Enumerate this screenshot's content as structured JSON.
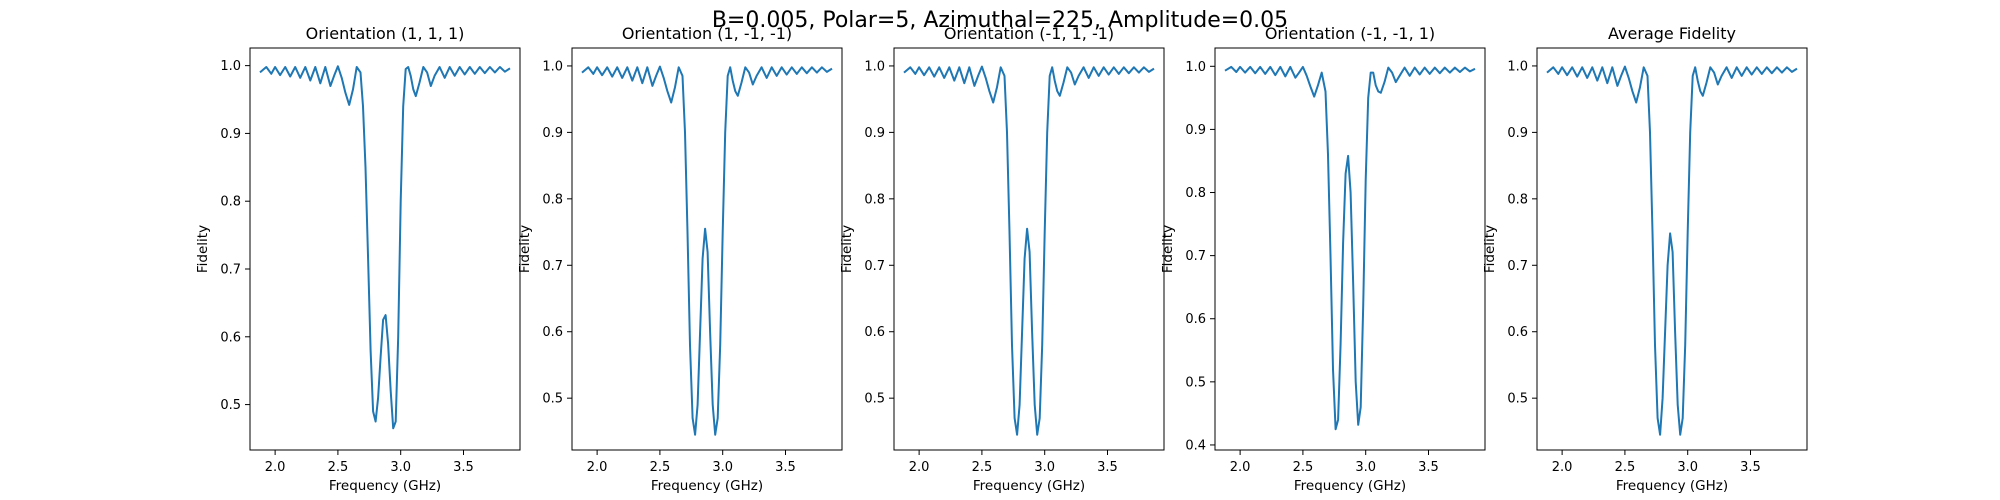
{
  "figure": {
    "suptitle": "B=0.005, Polar=5, Azimuthal=225, Amplitude=0.05",
    "line_color": "#1f77b4"
  },
  "chart_data": [
    {
      "type": "line",
      "title": "Orientation (1, 1, 1)",
      "xlabel": "Frequency (GHz)",
      "ylabel": "Fidelity",
      "xlim": [
        1.8,
        3.95
      ],
      "ylim": [
        0.433,
        1.026
      ],
      "xticks": [
        "2.0",
        "2.5",
        "3.0",
        "3.5"
      ],
      "yticks": [
        "0.5",
        "0.6",
        "0.7",
        "0.8",
        "0.9",
        "1.0"
      ],
      "grid": false,
      "series": [
        {
          "x": [
            1.88,
            1.93,
            1.97,
            2.0,
            2.04,
            2.08,
            2.12,
            2.16,
            2.2,
            2.24,
            2.28,
            2.32,
            2.36,
            2.4,
            2.44,
            2.47,
            2.5,
            2.53,
            2.56,
            2.59,
            2.62,
            2.65,
            2.68,
            2.7,
            2.72,
            2.74,
            2.76,
            2.78,
            2.8,
            2.82,
            2.84,
            2.86,
            2.88,
            2.9,
            2.92,
            2.94,
            2.96,
            2.98,
            3.0,
            3.02,
            3.04,
            3.06,
            3.08,
            3.1,
            3.12,
            3.15,
            3.18,
            3.21,
            3.24,
            3.27,
            3.31,
            3.35,
            3.39,
            3.43,
            3.47,
            3.51,
            3.55,
            3.59,
            3.63,
            3.67,
            3.71,
            3.75,
            3.79,
            3.83,
            3.87
          ],
          "y": [
            0.99,
            0.998,
            0.988,
            0.998,
            0.986,
            0.998,
            0.984,
            0.998,
            0.982,
            0.998,
            0.978,
            0.998,
            0.974,
            0.998,
            0.97,
            0.985,
            0.999,
            0.982,
            0.96,
            0.942,
            0.965,
            0.998,
            0.99,
            0.94,
            0.85,
            0.72,
            0.58,
            0.49,
            0.475,
            0.51,
            0.57,
            0.625,
            0.632,
            0.59,
            0.52,
            0.465,
            0.475,
            0.6,
            0.8,
            0.94,
            0.995,
            0.998,
            0.985,
            0.965,
            0.955,
            0.975,
            0.998,
            0.99,
            0.97,
            0.985,
            0.998,
            0.982,
            0.998,
            0.985,
            0.998,
            0.987,
            0.998,
            0.988,
            0.998,
            0.989,
            0.998,
            0.99,
            0.998,
            0.991,
            0.996
          ]
        }
      ]
    },
    {
      "type": "line",
      "title": "Orientation (1, -1, -1)",
      "xlabel": "Frequency (GHz)",
      "ylabel": "Fidelity",
      "xlim": [
        1.8,
        3.95
      ],
      "ylim": [
        0.422,
        1.027
      ],
      "xticks": [
        "2.0",
        "2.5",
        "3.0",
        "3.5"
      ],
      "yticks": [
        "0.5",
        "0.6",
        "0.7",
        "0.8",
        "0.9",
        "1.0"
      ],
      "grid": false,
      "series": [
        {
          "x": [
            1.88,
            1.93,
            1.97,
            2.0,
            2.04,
            2.08,
            2.12,
            2.16,
            2.2,
            2.24,
            2.28,
            2.32,
            2.36,
            2.4,
            2.44,
            2.47,
            2.5,
            2.53,
            2.56,
            2.59,
            2.62,
            2.65,
            2.68,
            2.7,
            2.72,
            2.74,
            2.76,
            2.78,
            2.8,
            2.82,
            2.84,
            2.86,
            2.88,
            2.9,
            2.92,
            2.94,
            2.96,
            2.98,
            3.0,
            3.02,
            3.04,
            3.06,
            3.08,
            3.1,
            3.12,
            3.15,
            3.18,
            3.21,
            3.24,
            3.27,
            3.31,
            3.35,
            3.39,
            3.43,
            3.47,
            3.51,
            3.55,
            3.59,
            3.63,
            3.67,
            3.71,
            3.75,
            3.79,
            3.83,
            3.87
          ],
          "y": [
            0.99,
            0.998,
            0.988,
            0.998,
            0.986,
            0.998,
            0.984,
            0.998,
            0.982,
            0.998,
            0.978,
            0.998,
            0.974,
            0.998,
            0.97,
            0.985,
            0.999,
            0.982,
            0.962,
            0.945,
            0.968,
            0.998,
            0.985,
            0.9,
            0.75,
            0.58,
            0.47,
            0.445,
            0.49,
            0.6,
            0.71,
            0.755,
            0.72,
            0.6,
            0.49,
            0.445,
            0.47,
            0.58,
            0.75,
            0.9,
            0.985,
            0.998,
            0.978,
            0.962,
            0.955,
            0.975,
            0.998,
            0.99,
            0.972,
            0.985,
            0.998,
            0.982,
            0.998,
            0.985,
            0.998,
            0.987,
            0.998,
            0.988,
            0.998,
            0.989,
            0.998,
            0.99,
            0.998,
            0.991,
            0.996
          ]
        }
      ]
    },
    {
      "type": "line",
      "title": "Orientation (-1, 1, -1)",
      "xlabel": "Frequency (GHz)",
      "ylabel": "Fidelity",
      "xlim": [
        1.8,
        3.95
      ],
      "ylim": [
        0.422,
        1.027
      ],
      "xticks": [
        "2.0",
        "2.5",
        "3.0",
        "3.5"
      ],
      "yticks": [
        "0.5",
        "0.6",
        "0.7",
        "0.8",
        "0.9",
        "1.0"
      ],
      "grid": false,
      "series": [
        {
          "x": [
            1.88,
            1.93,
            1.97,
            2.0,
            2.04,
            2.08,
            2.12,
            2.16,
            2.2,
            2.24,
            2.28,
            2.32,
            2.36,
            2.4,
            2.44,
            2.47,
            2.5,
            2.53,
            2.56,
            2.59,
            2.62,
            2.65,
            2.68,
            2.7,
            2.72,
            2.74,
            2.76,
            2.78,
            2.8,
            2.82,
            2.84,
            2.86,
            2.88,
            2.9,
            2.92,
            2.94,
            2.96,
            2.98,
            3.0,
            3.02,
            3.04,
            3.06,
            3.08,
            3.1,
            3.12,
            3.15,
            3.18,
            3.21,
            3.24,
            3.27,
            3.31,
            3.35,
            3.39,
            3.43,
            3.47,
            3.51,
            3.55,
            3.59,
            3.63,
            3.67,
            3.71,
            3.75,
            3.79,
            3.83,
            3.87
          ],
          "y": [
            0.99,
            0.998,
            0.988,
            0.998,
            0.986,
            0.998,
            0.984,
            0.998,
            0.982,
            0.998,
            0.978,
            0.998,
            0.974,
            0.998,
            0.97,
            0.985,
            0.999,
            0.982,
            0.962,
            0.945,
            0.968,
            0.998,
            0.985,
            0.9,
            0.75,
            0.58,
            0.47,
            0.445,
            0.49,
            0.6,
            0.71,
            0.755,
            0.72,
            0.6,
            0.49,
            0.445,
            0.47,
            0.58,
            0.75,
            0.9,
            0.985,
            0.998,
            0.978,
            0.962,
            0.955,
            0.975,
            0.998,
            0.99,
            0.972,
            0.985,
            0.998,
            0.982,
            0.998,
            0.985,
            0.998,
            0.987,
            0.998,
            0.988,
            0.998,
            0.989,
            0.998,
            0.99,
            0.998,
            0.991,
            0.996
          ]
        }
      ]
    },
    {
      "type": "line",
      "title": "Orientation (-1, -1, 1)",
      "xlabel": "Frequency (GHz)",
      "ylabel": "Fidelity",
      "xlim": [
        1.8,
        3.95
      ],
      "ylim": [
        0.392,
        1.029
      ],
      "xticks": [
        "2.0",
        "2.5",
        "3.0",
        "3.5"
      ],
      "yticks": [
        "0.4",
        "0.5",
        "0.6",
        "0.7",
        "0.8",
        "0.9",
        "1.0"
      ],
      "grid": false,
      "series": [
        {
          "x": [
            1.88,
            1.93,
            1.97,
            2.0,
            2.04,
            2.08,
            2.12,
            2.16,
            2.2,
            2.24,
            2.28,
            2.32,
            2.36,
            2.4,
            2.44,
            2.47,
            2.5,
            2.53,
            2.56,
            2.59,
            2.62,
            2.65,
            2.68,
            2.7,
            2.72,
            2.74,
            2.76,
            2.78,
            2.8,
            2.82,
            2.84,
            2.86,
            2.88,
            2.9,
            2.92,
            2.94,
            2.96,
            2.98,
            3.0,
            3.02,
            3.04,
            3.06,
            3.08,
            3.1,
            3.12,
            3.15,
            3.18,
            3.21,
            3.24,
            3.27,
            3.31,
            3.35,
            3.39,
            3.43,
            3.47,
            3.51,
            3.55,
            3.59,
            3.63,
            3.67,
            3.71,
            3.75,
            3.79,
            3.83,
            3.87
          ],
          "y": [
            0.993,
            0.999,
            0.991,
            0.999,
            0.99,
            0.999,
            0.989,
            0.999,
            0.988,
            0.999,
            0.986,
            0.999,
            0.984,
            0.999,
            0.982,
            0.99,
            0.999,
            0.985,
            0.968,
            0.952,
            0.97,
            0.99,
            0.96,
            0.86,
            0.7,
            0.52,
            0.425,
            0.44,
            0.56,
            0.72,
            0.83,
            0.858,
            0.8,
            0.66,
            0.5,
            0.432,
            0.46,
            0.62,
            0.82,
            0.95,
            0.99,
            0.99,
            0.97,
            0.96,
            0.958,
            0.975,
            0.998,
            0.99,
            0.975,
            0.985,
            0.998,
            0.985,
            0.998,
            0.987,
            0.998,
            0.988,
            0.998,
            0.989,
            0.998,
            0.99,
            0.998,
            0.991,
            0.998,
            0.992,
            0.996
          ]
        }
      ]
    },
    {
      "type": "line",
      "title": "Average Fidelity",
      "xlabel": "Frequency (GHz)",
      "ylabel": "Fidelity",
      "xlim": [
        1.8,
        3.95
      ],
      "ylim": [
        0.422,
        1.027
      ],
      "xticks": [
        "2.0",
        "2.5",
        "3.0",
        "3.5"
      ],
      "yticks": [
        "0.5",
        "0.6",
        "0.7",
        "0.8",
        "0.9",
        "1.0"
      ],
      "grid": false,
      "series": [
        {
          "x": [
            1.88,
            1.93,
            1.97,
            2.0,
            2.04,
            2.08,
            2.12,
            2.16,
            2.2,
            2.24,
            2.28,
            2.32,
            2.36,
            2.4,
            2.44,
            2.47,
            2.5,
            2.53,
            2.56,
            2.59,
            2.62,
            2.65,
            2.68,
            2.7,
            2.72,
            2.74,
            2.76,
            2.78,
            2.8,
            2.82,
            2.84,
            2.86,
            2.88,
            2.9,
            2.92,
            2.94,
            2.96,
            2.98,
            3.0,
            3.02,
            3.04,
            3.06,
            3.08,
            3.1,
            3.12,
            3.15,
            3.18,
            3.21,
            3.24,
            3.27,
            3.31,
            3.35,
            3.39,
            3.43,
            3.47,
            3.51,
            3.55,
            3.59,
            3.63,
            3.67,
            3.71,
            3.75,
            3.79,
            3.83,
            3.87
          ],
          "y": [
            0.99,
            0.998,
            0.988,
            0.998,
            0.986,
            0.998,
            0.984,
            0.998,
            0.982,
            0.998,
            0.978,
            0.998,
            0.974,
            0.998,
            0.97,
            0.985,
            0.999,
            0.982,
            0.962,
            0.945,
            0.968,
            0.998,
            0.985,
            0.9,
            0.75,
            0.58,
            0.47,
            0.445,
            0.5,
            0.6,
            0.7,
            0.748,
            0.72,
            0.6,
            0.49,
            0.445,
            0.47,
            0.58,
            0.75,
            0.9,
            0.985,
            0.998,
            0.978,
            0.962,
            0.955,
            0.975,
            0.998,
            0.99,
            0.972,
            0.985,
            0.998,
            0.982,
            0.998,
            0.985,
            0.998,
            0.987,
            0.998,
            0.988,
            0.998,
            0.989,
            0.998,
            0.99,
            0.998,
            0.991,
            0.996
          ]
        }
      ]
    }
  ]
}
